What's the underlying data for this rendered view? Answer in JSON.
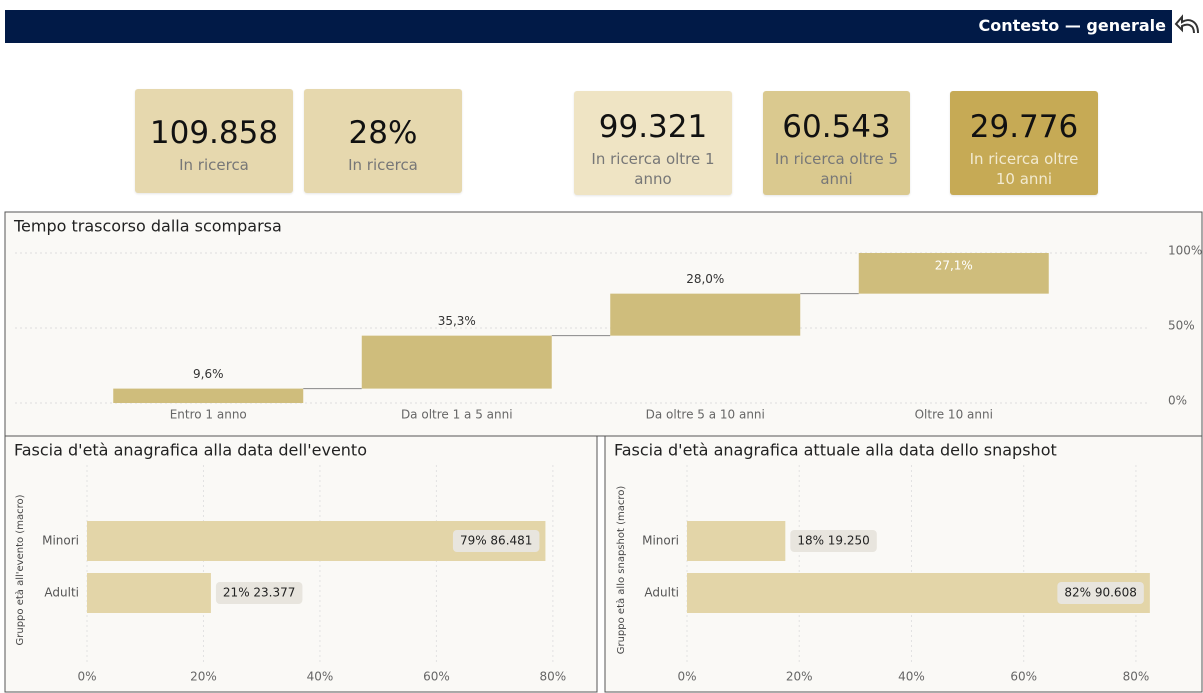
{
  "header": {
    "title": "Contesto — generale"
  },
  "kpis": [
    {
      "value": "109.858",
      "label": "In ricerca",
      "color": "#e6d8ae"
    },
    {
      "value": "28%",
      "label": "In ricerca",
      "color": "#e6d8ae"
    },
    {
      "value": "99.321",
      "label": "In ricerca oltre 1 anno",
      "color": "#efe4c4"
    },
    {
      "value": "60.543",
      "label": "In ricerca oltre 5 anni",
      "color": "#dac98f"
    },
    {
      "value": "29.776",
      "label": "In ricerca oltre 10 anni",
      "color": "#c6aa55"
    }
  ],
  "chart_data": [
    {
      "type": "waterfall",
      "title": "Tempo trascorso dalla scomparsa",
      "categories": [
        "Entro 1 anno",
        "Da oltre 1 a 5 anni",
        "Da oltre 5 a 10 anni",
        "Oltre 10 anni"
      ],
      "values": [
        9.6,
        35.3,
        28.0,
        27.1
      ],
      "value_labels": [
        "9,6%",
        "35,3%",
        "28,0%",
        "27,1%"
      ],
      "color": "#cfbd7c",
      "ylim": [
        0,
        100
      ],
      "yticks": [
        {
          "value": 0,
          "label": "0%"
        },
        {
          "value": 50,
          "label": "50%"
        },
        {
          "value": 100,
          "label": "100%"
        }
      ],
      "grid": true
    },
    {
      "type": "hbar",
      "title": "Fascia d'età anagrafica alla data dell'evento",
      "y_label": "Gruppo età all'evento (macro)",
      "categories": [
        "Minori",
        "Adulti"
      ],
      "values": [
        78.72,
        21.28
      ],
      "value_labels": [
        "79% 86.481",
        "21% 23.377"
      ],
      "color": "#e3d5a8",
      "xlim": [
        0,
        85
      ],
      "xticks": [
        {
          "value": 0,
          "label": "0%"
        },
        {
          "value": 20,
          "label": "20%"
        },
        {
          "value": 40,
          "label": "40%"
        },
        {
          "value": 60,
          "label": "60%"
        },
        {
          "value": 80,
          "label": "80%"
        }
      ],
      "grid": true
    },
    {
      "type": "hbar",
      "title": "Fascia d'età anagrafica attuale alla data dello snapshot",
      "y_label": "Gruppo età allo snapshot (macro)",
      "categories": [
        "Minori",
        "Adulti"
      ],
      "values": [
        17.52,
        82.48
      ],
      "value_labels": [
        "18% 19.250",
        "82% 90.608"
      ],
      "color": "#e3d5a8",
      "xlim": [
        0,
        85
      ],
      "xticks": [
        {
          "value": 0,
          "label": "0%"
        },
        {
          "value": 20,
          "label": "20%"
        },
        {
          "value": 40,
          "label": "40%"
        },
        {
          "value": 60,
          "label": "60%"
        },
        {
          "value": 80,
          "label": "80%"
        }
      ],
      "grid": true
    }
  ]
}
